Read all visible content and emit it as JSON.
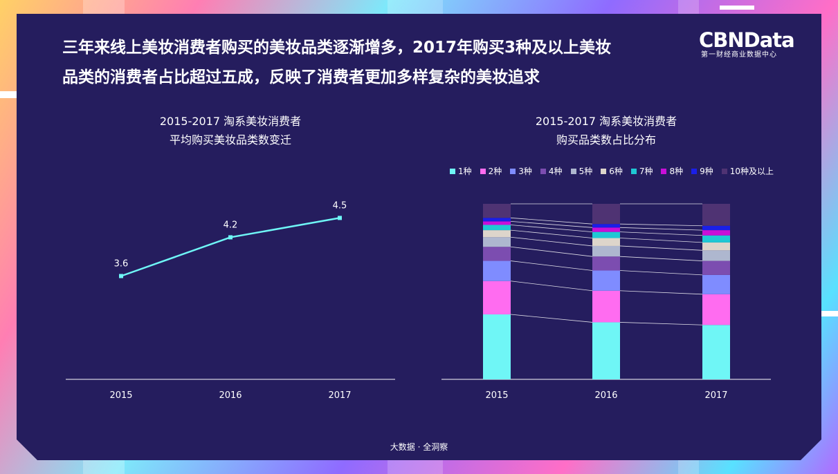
{
  "headline": {
    "line1": "三年来线上美妆消费者购买的美妆品类逐渐增多，2017年购买3种及以上美妆",
    "line2": "品类的消费者占比超过五成，反映了消费者更加多样复杂的美妆追求"
  },
  "logo": {
    "main": "CBNData",
    "sub": "第一财经商业数据中心"
  },
  "footer": "大数据 · 全洞察",
  "chart_data": [
    {
      "type": "line",
      "title_line1": "2015-2017 淘系美妆消费者",
      "title_line2": "平均购买美妆品类数变迁",
      "categories": [
        "2015",
        "2016",
        "2017"
      ],
      "values": [
        3.6,
        4.2,
        4.5
      ],
      "data_labels": [
        "3.6",
        "4.2",
        "4.5"
      ],
      "ylim": [
        2.0,
        5.2
      ],
      "color": "#6ff6f6"
    },
    {
      "type": "bar",
      "stacked": true,
      "title_line1": "2015-2017 淘系美妆消费者",
      "title_line2": "购买品类数占比分布",
      "categories": [
        "2015",
        "2016",
        "2017"
      ],
      "legend_position": "top",
      "ylim": [
        0,
        100
      ],
      "series": [
        {
          "name": "1种",
          "color": "#6ff6f6",
          "values": [
            37.0,
            32.5,
            31.0
          ]
        },
        {
          "name": "2种",
          "color": "#ff6cf0",
          "values": [
            19.0,
            18.0,
            17.5
          ]
        },
        {
          "name": "3种",
          "color": "#7f8cff",
          "values": [
            11.5,
            11.5,
            11.0
          ]
        },
        {
          "name": "4种",
          "color": "#7c4db0",
          "values": [
            8.0,
            8.0,
            8.0
          ]
        },
        {
          "name": "5种",
          "color": "#aeb7cf",
          "values": [
            5.5,
            6.0,
            6.0
          ]
        },
        {
          "name": "6种",
          "color": "#ddd5cb",
          "values": [
            4.0,
            4.5,
            4.5
          ]
        },
        {
          "name": "7种",
          "color": "#1fc8d4",
          "values": [
            3.0,
            3.5,
            4.0
          ]
        },
        {
          "name": "8种",
          "color": "#c90fd8",
          "values": [
            2.0,
            2.5,
            3.0
          ]
        },
        {
          "name": "9种",
          "color": "#1a1fe8",
          "values": [
            2.0,
            2.0,
            2.5
          ]
        },
        {
          "name": "10种及以上",
          "color": "#4f3373",
          "values": [
            8.0,
            11.5,
            12.5
          ]
        }
      ]
    }
  ]
}
